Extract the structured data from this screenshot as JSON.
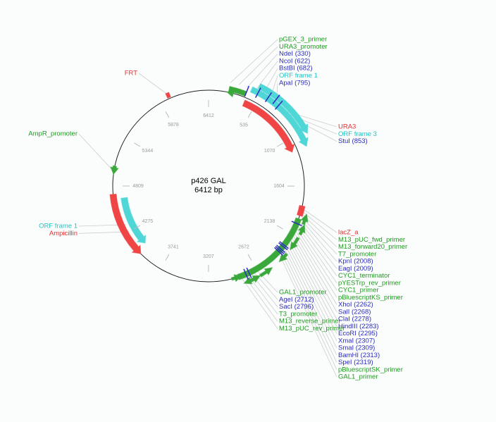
{
  "title": "p426 GAL",
  "subtitle": "6412 bp",
  "ticks": [
    6412,
    535,
    1070,
    1604,
    2138,
    2672,
    3207,
    3741,
    4275,
    4809,
    5344,
    5878
  ],
  "label_groups": [
    {
      "items": [
        {
          "text": "pGEX_3_primer",
          "color": "#1e9a1e"
        },
        {
          "text": "URA3_promoter",
          "color": "#1e9a1e"
        },
        {
          "text": "NdeI (330)",
          "color": "#2b2bc0"
        },
        {
          "text": "NcoI (622)",
          "color": "#2b2bc0"
        },
        {
          "text": "BstBI (682)",
          "color": "#2b2bc0"
        },
        {
          "text": "ORF frame 1",
          "color": "#22c4c4"
        },
        {
          "text": "ApaI (795)",
          "color": "#2b2bc0"
        }
      ]
    },
    {
      "items": [
        {
          "text": "URA3",
          "color": "#e53030"
        },
        {
          "text": "ORF frame 3",
          "color": "#22c4c4"
        },
        {
          "text": "StuI (853)",
          "color": "#2b2bc0"
        }
      ]
    },
    {
      "items": [
        {
          "text": "FRT",
          "color": "#e53030"
        }
      ]
    },
    {
      "items": [
        {
          "text": "AmpR_promoter",
          "color": "#1e9a1e"
        }
      ]
    },
    {
      "items": [
        {
          "text": "ORF frame 1",
          "color": "#22c4c4"
        },
        {
          "text": "Ampicillin",
          "color": "#e53030"
        }
      ]
    },
    {
      "items": [
        {
          "text": "GAL1_promoter",
          "color": "#1e9a1e"
        },
        {
          "text": "AgeI (2712)",
          "color": "#2b2bc0"
        },
        {
          "text": "SacI (2796)",
          "color": "#2b2bc0"
        },
        {
          "text": "T3_promoter",
          "color": "#1e9a1e"
        },
        {
          "text": "M13_reverse_primer",
          "color": "#1e9a1e"
        },
        {
          "text": "M13_pUC_rev_primer",
          "color": "#1e9a1e"
        }
      ]
    },
    {
      "items": [
        {
          "text": "lacZ_a",
          "color": "#e53030"
        },
        {
          "text": "M13_pUC_fwd_primer",
          "color": "#1e9a1e"
        },
        {
          "text": "M13_forward20_primer",
          "color": "#1e9a1e"
        },
        {
          "text": "T7_promoter",
          "color": "#1e9a1e"
        },
        {
          "text": "KpnI (2008)",
          "color": "#2b2bc0"
        },
        {
          "text": "EagI (2009)",
          "color": "#2b2bc0"
        },
        {
          "text": "CYC1_terminator",
          "color": "#1e9a1e"
        },
        {
          "text": "pYESTrp_rev_primer",
          "color": "#1e9a1e"
        },
        {
          "text": "CYC1_primer",
          "color": "#1e9a1e"
        },
        {
          "text": "pBluescriptKS_primer",
          "color": "#1e9a1e"
        },
        {
          "text": "XhoI (2262)",
          "color": "#2b2bc0"
        },
        {
          "text": "SalI (2268)",
          "color": "#2b2bc0"
        },
        {
          "text": "ClaI (2278)",
          "color": "#2b2bc0"
        },
        {
          "text": "HindIII (2283)",
          "color": "#2b2bc0"
        },
        {
          "text": "EcoRI (2295)",
          "color": "#2b2bc0"
        },
        {
          "text": "XmaI (2307)",
          "color": "#2b2bc0"
        },
        {
          "text": "SmaI (2309)",
          "color": "#2b2bc0"
        },
        {
          "text": "BamHI (2313)",
          "color": "#2b2bc0"
        },
        {
          "text": "SpeI (2319)",
          "color": "#2b2bc0"
        },
        {
          "text": "pBluescriptSK_primer",
          "color": "#1e9a1e"
        },
        {
          "text": "GAL1_primer",
          "color": "#1e9a1e"
        }
      ]
    }
  ]
}
